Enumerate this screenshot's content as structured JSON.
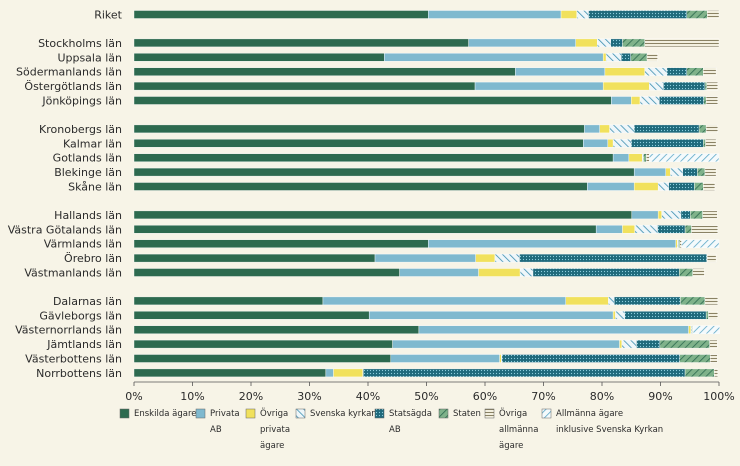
{
  "chart_data": {
    "type": "bar",
    "orientation": "horizontal",
    "stacked": true,
    "xlim": [
      0,
      100
    ],
    "x_ticks": [
      "0%",
      "10%",
      "20%",
      "30%",
      "40%",
      "50%",
      "60%",
      "70%",
      "80%",
      "90%",
      "100%"
    ],
    "grid": false,
    "legend_position": "bottom",
    "categories": [
      "Riket",
      "Stockholms län",
      "Uppsala län",
      "Södermanlands län",
      "Östergötlands län",
      "Jönköpings län",
      "Kronobergs län",
      "Kalmar län",
      "Gotlands län",
      "Blekinge län",
      "Skåne län",
      "Hallands län",
      "Västra Götalands län",
      "Värmlands län",
      "Örebro län",
      "Västmanlands län",
      "Dalarnas län",
      "Gävleborgs län",
      "Västernorrlands län",
      "Jämtlands län",
      "Västerbottens län",
      "Norrbottens län"
    ],
    "groups": [
      [
        0
      ],
      [
        1,
        2,
        3,
        4,
        5
      ],
      [
        6,
        7,
        8,
        9,
        10
      ],
      [
        11,
        12,
        13,
        14,
        15
      ],
      [
        16,
        17,
        18,
        19,
        20,
        21
      ]
    ],
    "series": [
      {
        "name": "Enskilda ägare",
        "color": "#2d6a4f",
        "pattern": "solid",
        "values": [
          50.3,
          57.2,
          42.8,
          65.2,
          58.3,
          81.6,
          77.0,
          76.8,
          81.9,
          85.5,
          77.5,
          85.1,
          79.0,
          50.3,
          41.2,
          45.4,
          32.3,
          40.2,
          48.7,
          44.2,
          43.9,
          32.8
        ]
      },
      {
        "name": "Privata AB",
        "color": "#7fb9cf",
        "pattern": "solid",
        "values": [
          22.7,
          18.3,
          37.4,
          15.3,
          21.9,
          3.4,
          2.6,
          4.2,
          2.7,
          5.4,
          8.0,
          4.5,
          4.5,
          42.3,
          17.2,
          13.5,
          41.5,
          41.7,
          46.1,
          38.8,
          18.6,
          1.3
        ]
      },
      {
        "name": "Övriga privata ägare",
        "color": "#f1e15c",
        "pattern": "solid",
        "values": [
          2.7,
          3.7,
          0.5,
          6.8,
          7.9,
          1.5,
          1.7,
          0.9,
          2.3,
          0.8,
          4.1,
          0.6,
          2.1,
          0.3,
          3.3,
          7.1,
          7.3,
          0.4,
          0.4,
          0.4,
          0.3,
          5.0
        ]
      },
      {
        "name": "Svenska kyrkan",
        "color": "#8fc4dd",
        "pattern": "hatch-back",
        "values": [
          2.0,
          2.3,
          2.6,
          3.8,
          2.4,
          3.3,
          4.2,
          3.1,
          0.1,
          2.1,
          1.8,
          3.3,
          3.9,
          0.1,
          4.2,
          2.2,
          1.0,
          1.6,
          0.1,
          2.5,
          0.1,
          0.1
        ]
      },
      {
        "name": "Statsägda AB",
        "color": "#2a6f80",
        "pattern": "dots",
        "values": [
          16.8,
          2.0,
          1.6,
          3.4,
          7.1,
          7.6,
          11.1,
          12.3,
          0.1,
          2.5,
          4.4,
          1.6,
          4.7,
          0.1,
          32.0,
          25.0,
          11.3,
          13.9,
          0.1,
          4.0,
          30.4,
          55.0
        ]
      },
      {
        "name": "Staten",
        "color": "#7fb28a",
        "pattern": "hatch",
        "values": [
          3.5,
          3.8,
          2.8,
          2.8,
          0.3,
          0.4,
          1.2,
          0.4,
          0.5,
          1.3,
          1.5,
          2.1,
          1.1,
          0.2,
          0.1,
          2.3,
          4.2,
          0.4,
          0.1,
          8.5,
          5.2,
          5.0
        ]
      },
      {
        "name": "Övriga allmänna ägare",
        "color": "#c9c19a",
        "pattern": "hlines",
        "values": [
          2.0,
          12.7,
          1.8,
          2.2,
          1.9,
          2.0,
          2.0,
          1.8,
          0.5,
          1.9,
          2.0,
          2.5,
          4.5,
          0.3,
          1.5,
          2.0,
          2.2,
          1.6,
          0.1,
          1.3,
          1.2,
          0.6
        ]
      },
      {
        "name": "Allmänna ägare inklusive Svenska Kyrkan",
        "color": "#9ccfe3",
        "pattern": "hatch-light",
        "values": [
          0,
          0,
          0,
          0,
          0,
          0,
          0,
          0,
          11.9,
          0,
          0,
          0,
          0,
          6.4,
          0,
          0,
          0,
          0,
          4.5,
          0,
          0,
          0
        ]
      }
    ]
  }
}
